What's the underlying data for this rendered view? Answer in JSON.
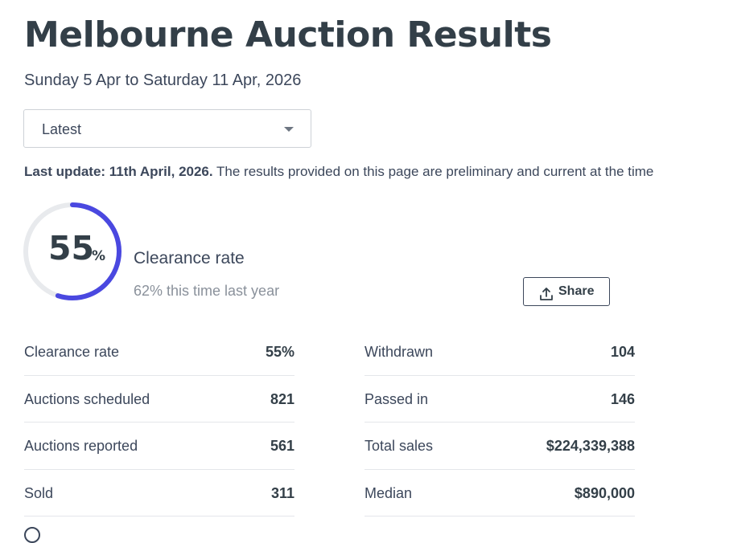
{
  "header": {
    "title": "Melbourne Auction Results",
    "date_range": "Sunday 5 Apr to Saturday 11 Apr, 2026"
  },
  "period_select": {
    "value": "Latest"
  },
  "update_note": {
    "bold": "Last update: 11th April, 2026.",
    "text": " The results provided on this page are preliminary and current at the time"
  },
  "clearance": {
    "value": 55,
    "value_text": "55",
    "unit": "%",
    "label": "Clearance rate",
    "compare": "62% this time last year",
    "accent_color": "#4a48e0",
    "track_color": "#e8eaed"
  },
  "share_button": {
    "label": "Share",
    "icon": "share-upload-icon"
  },
  "stats_left": [
    {
      "label": "Clearance rate",
      "value": "55%"
    },
    {
      "label": "Auctions scheduled",
      "value": "821"
    },
    {
      "label": "Auctions reported",
      "value": "561"
    },
    {
      "label": "Sold",
      "value": "311"
    }
  ],
  "stats_right": [
    {
      "label": "Withdrawn",
      "value": "104"
    },
    {
      "label": "Passed in",
      "value": "146"
    },
    {
      "label": "Total sales",
      "value": "$224,339,388"
    },
    {
      "label": "Median",
      "value": "$890,000"
    }
  ],
  "info_icon": "info-icon"
}
